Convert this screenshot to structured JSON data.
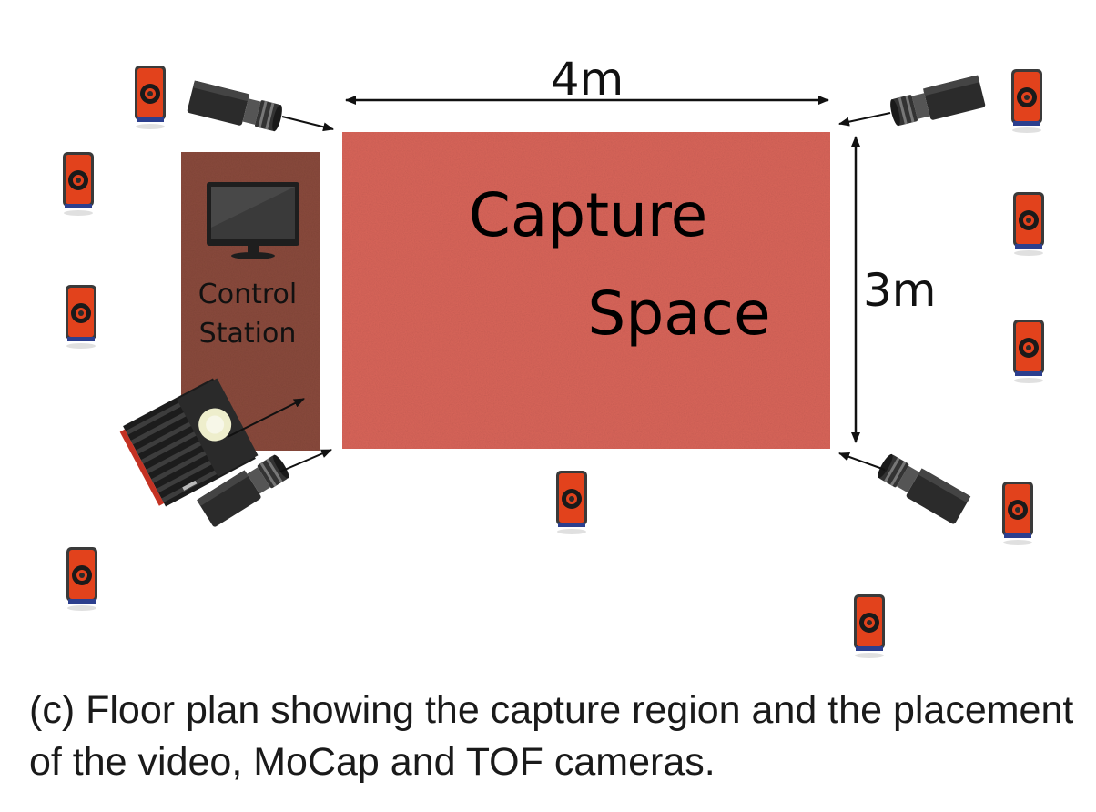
{
  "labels": {
    "width_dim": "4m",
    "height_dim": "3m",
    "capture_line1": "Capture",
    "capture_line2": "Space",
    "station_line1": "Control",
    "station_line2": "Station"
  },
  "caption": "(c) Floor plan showing the capture region and the placement of the video, MoCap and TOF cameras.",
  "icons": {
    "mocap": "mocap-camera-icon",
    "video": "video-camera-icon",
    "tof": "tof-camera-icon",
    "monitor": "monitor-icon"
  },
  "colors": {
    "capture_space": "#d9655a",
    "control_station": "#8a4a3c",
    "mocap_accent": "#e0411b",
    "arrow": "#111111"
  }
}
